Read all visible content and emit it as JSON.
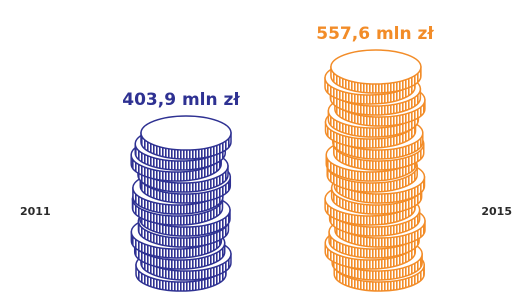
{
  "chart_data": {
    "type": "coin-stack",
    "categories": [
      "2011",
      "2015"
    ],
    "values": [
      403.9,
      557.6
    ],
    "value_labels": [
      "403,9 mln zł",
      "557,6 mln zł"
    ],
    "colors": [
      "#2e3192",
      "#f28c28"
    ]
  }
}
